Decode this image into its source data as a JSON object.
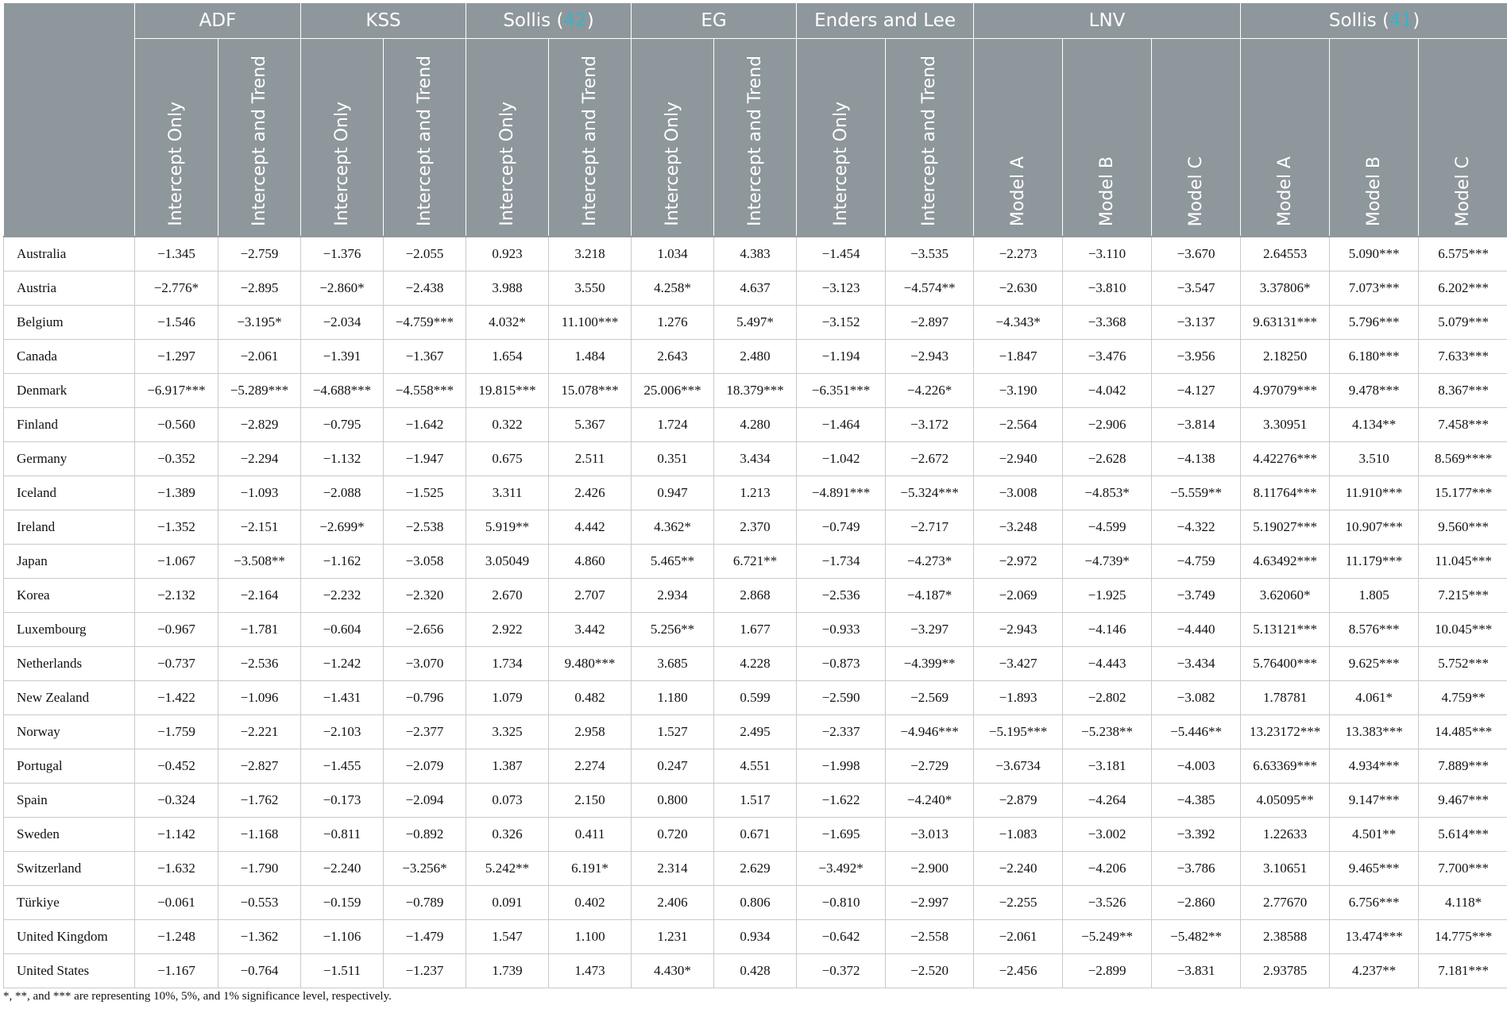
{
  "groups": [
    {
      "name": "ADF",
      "ref": ""
    },
    {
      "name": "KSS",
      "ref": ""
    },
    {
      "name": "Sollis (",
      "ref": "42",
      "close": ")"
    },
    {
      "name": "EG",
      "ref": ""
    },
    {
      "name": "Enders and Lee",
      "ref": ""
    },
    {
      "name": "LNV",
      "ref": ""
    },
    {
      "name": "Sollis (",
      "ref": "41",
      "close": ")"
    }
  ],
  "subheaders": [
    "Intercept Only",
    "Intercept and Trend",
    "Intercept Only",
    "Intercept and Trend",
    "Intercept Only",
    "Intercept and Trend",
    "Intercept Only",
    "Intercept and Trend",
    "Intercept Only",
    "Intercept and Trend",
    "Model A",
    "Model B",
    "Model C",
    "Model A",
    "Model B",
    "Model C"
  ],
  "rows": [
    {
      "country": "Australia",
      "values": [
        "−1.345",
        "−2.759",
        "−1.376",
        "−2.055",
        "0.923",
        "3.218",
        "1.034",
        "4.383",
        "−1.454",
        "−3.535",
        "−2.273",
        "−3.110",
        "−3.670",
        "2.64553",
        "5.090***",
        "6.575***"
      ]
    },
    {
      "country": "Austria",
      "values": [
        "−2.776*",
        "−2.895",
        "−2.860*",
        "−2.438",
        "3.988",
        "3.550",
        "4.258*",
        "4.637",
        "−3.123",
        "−4.574**",
        "−2.630",
        "−3.810",
        "−3.547",
        "3.37806*",
        "7.073***",
        "6.202***"
      ]
    },
    {
      "country": "Belgium",
      "values": [
        "−1.546",
        "−3.195*",
        "−2.034",
        "−4.759***",
        "4.032*",
        "11.100***",
        "1.276",
        "5.497*",
        "−3.152",
        "−2.897",
        "−4.343*",
        "−3.368",
        "−3.137",
        "9.63131***",
        "5.796***",
        "5.079***"
      ]
    },
    {
      "country": "Canada",
      "values": [
        "−1.297",
        "−2.061",
        "−1.391",
        "−1.367",
        "1.654",
        "1.484",
        "2.643",
        "2.480",
        "−1.194",
        "−2.943",
        "−1.847",
        "−3.476",
        "−3.956",
        "2.18250",
        "6.180***",
        "7.633***"
      ]
    },
    {
      "country": "Denmark",
      "values": [
        "−6.917***",
        "−5.289***",
        "−4.688***",
        "−4.558***",
        "19.815***",
        "15.078***",
        "25.006***",
        "18.379***",
        "−6.351***",
        "−4.226*",
        "−3.190",
        "−4.042",
        "−4.127",
        "4.97079***",
        "9.478***",
        "8.367***"
      ]
    },
    {
      "country": "Finland",
      "values": [
        "−0.560",
        "−2.829",
        "−0.795",
        "−1.642",
        "0.322",
        "5.367",
        "1.724",
        "4.280",
        "−1.464",
        "−3.172",
        "−2.564",
        "−2.906",
        "−3.814",
        "3.30951",
        "4.134**",
        "7.458***"
      ]
    },
    {
      "country": "Germany",
      "values": [
        "−0.352",
        "−2.294",
        "−1.132",
        "−1.947",
        "0.675",
        "2.511",
        "0.351",
        "3.434",
        "−1.042",
        "−2.672",
        "−2.940",
        "−2.628",
        "−4.138",
        "4.42276***",
        "3.510",
        "8.569****"
      ]
    },
    {
      "country": "Iceland",
      "values": [
        "−1.389",
        "−1.093",
        "−2.088",
        "−1.525",
        "3.311",
        "2.426",
        "0.947",
        "1.213",
        "−4.891***",
        "−5.324***",
        "−3.008",
        "−4.853*",
        "−5.559**",
        "8.11764***",
        "11.910***",
        "15.177***"
      ]
    },
    {
      "country": "Ireland",
      "values": [
        "−1.352",
        "−2.151",
        "−2.699*",
        "−2.538",
        "5.919**",
        "4.442",
        "4.362*",
        "2.370",
        "−0.749",
        "−2.717",
        "−3.248",
        "−4.599",
        "−4.322",
        "5.19027***",
        "10.907***",
        "9.560***"
      ]
    },
    {
      "country": "Japan",
      "values": [
        "−1.067",
        "−3.508**",
        "−1.162",
        "−3.058",
        "3.05049",
        "4.860",
        "5.465**",
        "6.721**",
        "−1.734",
        "−4.273*",
        "−2.972",
        "−4.739*",
        "−4.759",
        "4.63492***",
        "11.179***",
        "11.045***"
      ]
    },
    {
      "country": "Korea",
      "values": [
        "−2.132",
        "−2.164",
        "−2.232",
        "−2.320",
        "2.670",
        "2.707",
        "2.934",
        "2.868",
        "−2.536",
        "−4.187*",
        "−2.069",
        "−1.925",
        "−3.749",
        "3.62060*",
        "1.805",
        "7.215***"
      ]
    },
    {
      "country": "Luxembourg",
      "values": [
        "−0.967",
        "−1.781",
        "−0.604",
        "−2.656",
        "2.922",
        "3.442",
        "5.256**",
        "1.677",
        "−0.933",
        "−3.297",
        "−2.943",
        "−4.146",
        "−4.440",
        "5.13121***",
        "8.576***",
        "10.045***"
      ]
    },
    {
      "country": "Netherlands",
      "values": [
        "−0.737",
        "−2.536",
        "−1.242",
        "−3.070",
        "1.734",
        "9.480***",
        "3.685",
        "4.228",
        "−0.873",
        "−4.399**",
        "−3.427",
        "−4.443",
        "−3.434",
        "5.76400***",
        "9.625***",
        "5.752***"
      ]
    },
    {
      "country": "New Zealand",
      "values": [
        "−1.422",
        "−1.096",
        "−1.431",
        "−0.796",
        "1.079",
        "0.482",
        "1.180",
        "0.599",
        "−2.590",
        "−2.569",
        "−1.893",
        "−2.802",
        "−3.082",
        "1.78781",
        "4.061*",
        "4.759**"
      ]
    },
    {
      "country": "Norway",
      "values": [
        "−1.759",
        "−2.221",
        "−2.103",
        "−2.377",
        "3.325",
        "2.958",
        "1.527",
        "2.495",
        "−2.337",
        "−4.946***",
        "−5.195***",
        "−5.238**",
        "−5.446**",
        "13.23172***",
        "13.383***",
        "14.485***"
      ]
    },
    {
      "country": "Portugal",
      "values": [
        "−0.452",
        "−2.827",
        "−1.455",
        "−2.079",
        "1.387",
        "2.274",
        "0.247",
        "4.551",
        "−1.998",
        "−2.729",
        "−3.6734",
        "−3.181",
        "−4.003",
        "6.63369***",
        "4.934***",
        "7.889***"
      ]
    },
    {
      "country": "Spain",
      "values": [
        "−0.324",
        "−1.762",
        "−0.173",
        "−2.094",
        "0.073",
        "2.150",
        "0.800",
        "1.517",
        "−1.622",
        "−4.240*",
        "−2.879",
        "−4.264",
        "−4.385",
        "4.05095**",
        "9.147***",
        "9.467***"
      ]
    },
    {
      "country": "Sweden",
      "values": [
        "−1.142",
        "−1.168",
        "−0.811",
        "−0.892",
        "0.326",
        "0.411",
        "0.720",
        "0.671",
        "−1.695",
        "−3.013",
        "−1.083",
        "−3.002",
        "−3.392",
        "1.22633",
        "4.501**",
        "5.614***"
      ]
    },
    {
      "country": "Switzerland",
      "values": [
        "−1.632",
        "−1.790",
        "−2.240",
        "−3.256*",
        "5.242**",
        "6.191*",
        "2.314",
        "2.629",
        "−3.492*",
        "−2.900",
        "−2.240",
        "−4.206",
        "−3.786",
        "3.10651",
        "9.465***",
        "7.700***"
      ]
    },
    {
      "country": "Türkiye",
      "values": [
        "−0.061",
        "−0.553",
        "−0.159",
        "−0.789",
        "0.091",
        "0.402",
        "2.406",
        "0.806",
        "−0.810",
        "−2.997",
        "−2.255",
        "−3.526",
        "−2.860",
        "2.77670",
        "6.756***",
        "4.118*"
      ]
    },
    {
      "country": "United Kingdom",
      "values": [
        "−1.248",
        "−1.362",
        "−1.106",
        "−1.479",
        "1.547",
        "1.100",
        "1.231",
        "0.934",
        "−0.642",
        "−2.558",
        "−2.061",
        "−5.249**",
        "−5.482**",
        "2.38588",
        "13.474***",
        "14.775***"
      ]
    },
    {
      "country": "United States",
      "values": [
        "−1.167",
        "−0.764",
        "−1.511",
        "−1.237",
        "1.739",
        "1.473",
        "4.430*",
        "0.428",
        "−0.372",
        "−2.520",
        "−2.456",
        "−2.899",
        "−3.831",
        "2.93785",
        "4.237**",
        "7.181***"
      ]
    }
  ],
  "footnote": "*, **, and *** are representing 10%, 5%, and 1% significance level, respectively.",
  "colors": {
    "header_bg": "#8e979c",
    "header_text": "#ffffff",
    "ref_link": "#38b3c9"
  }
}
